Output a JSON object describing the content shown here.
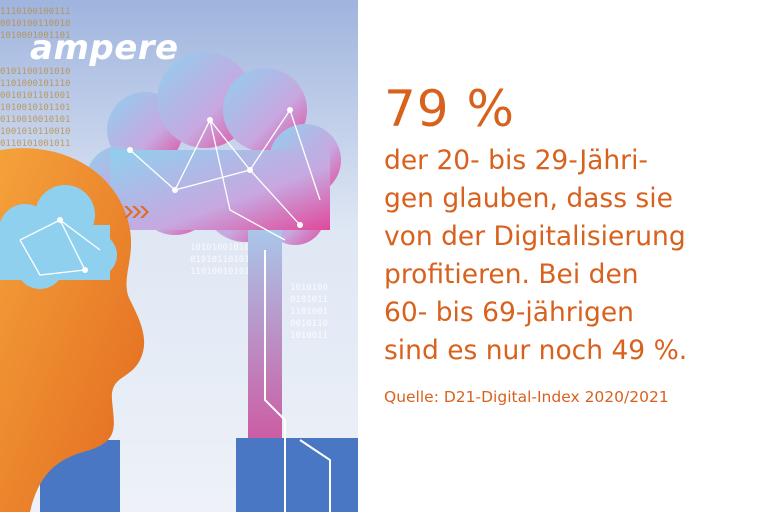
{
  "logo": "ampere",
  "headline": "79 %",
  "body_lines": [
    "der 20- bis 29-Jähri-",
    "gen glauben, dass sie",
    "von der Digitalisierung",
    "profitieren. Bei den",
    "60- bis 69-jährigen",
    "sind es nur noch 49 %."
  ],
  "source": "Quelle: D21-Digital-Index 2020/2021",
  "colors": {
    "text": "#d8621d",
    "head": "#ee8a2a",
    "blue": "#4a77c4",
    "cloud": "#7ec6e8",
    "pink": "#d8378a"
  }
}
